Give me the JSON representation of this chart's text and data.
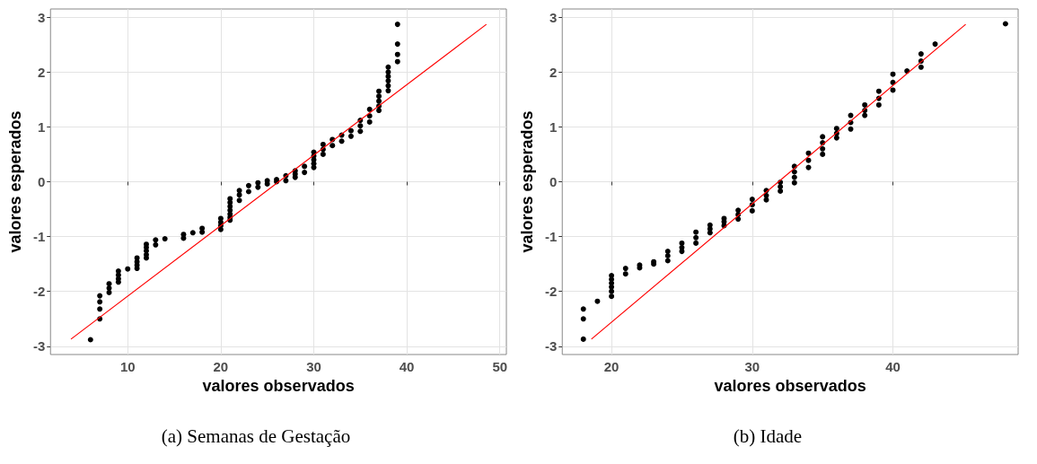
{
  "chart_data": [
    {
      "type": "scatter",
      "xlabel": "valores observados",
      "ylabel": "valores esperados",
      "annotations": [
        "(a) Semanas de Gestação"
      ],
      "xlim": [
        1.7,
        50.7
      ],
      "ylim": [
        -3.15,
        3.15
      ],
      "xticks": [
        10,
        20,
        30,
        40,
        50
      ],
      "yticks": [
        -3,
        -2,
        -1,
        0,
        1,
        2,
        3
      ],
      "grid": true,
      "marker": "circle",
      "series": [
        {
          "color": "#000000",
          "x": [
            6,
            7,
            7,
            7,
            7,
            8,
            8,
            8,
            9,
            9,
            9,
            9,
            10,
            11,
            11,
            11,
            11,
            12,
            12,
            12,
            12,
            12,
            13,
            13,
            14,
            16,
            16,
            17,
            18,
            18,
            20,
            20,
            20,
            20,
            21,
            21,
            21,
            21,
            21,
            21,
            21,
            22,
            22,
            22,
            23,
            23,
            24,
            24,
            25,
            25,
            26,
            26,
            27,
            27,
            28,
            28,
            28,
            29,
            29,
            30,
            30,
            30,
            30,
            30,
            31,
            31,
            31,
            32,
            32,
            33,
            33,
            34,
            34,
            35,
            35,
            35,
            36,
            36,
            36,
            37,
            37,
            37,
            37,
            37,
            38,
            38,
            38,
            38,
            38,
            38,
            39,
            39,
            39,
            39
          ],
          "values": [
            -2.88,
            -2.08,
            -2.19,
            -2.32,
            -2.5,
            -1.86,
            -1.94,
            -2.02,
            -1.63,
            -1.7,
            -1.77,
            -1.83,
            -1.59,
            -1.39,
            -1.46,
            -1.52,
            -1.58,
            -1.14,
            -1.2,
            -1.26,
            -1.33,
            -1.39,
            -1.06,
            -1.15,
            -1.04,
            -0.96,
            -1.03,
            -0.93,
            -0.85,
            -0.92,
            -0.67,
            -0.74,
            -0.8,
            -0.87,
            -0.31,
            -0.38,
            -0.45,
            -0.52,
            -0.59,
            -0.65,
            -0.7,
            -0.16,
            -0.24,
            -0.34,
            -0.07,
            -0.18,
            -0.02,
            -0.1,
            0.02,
            -0.04,
            0.04,
            0,
            0.11,
            0.02,
            0.2,
            0.14,
            0.08,
            0.28,
            0.17,
            0.54,
            0.47,
            0.4,
            0.33,
            0.26,
            0.68,
            0.59,
            0.5,
            0.77,
            0.66,
            0.85,
            0.74,
            0.93,
            0.83,
            1.12,
            1.02,
            0.92,
            1.32,
            1.2,
            1.09,
            1.65,
            1.56,
            1.47,
            1.38,
            1.3,
            2.09,
            2,
            1.92,
            1.84,
            1.75,
            1.66,
            2.87,
            2.51,
            2.32,
            2.19
          ]
        },
        {
          "type": "line",
          "marker": "none",
          "color": "#ff0000",
          "x": [
            3.9,
            48.55
          ],
          "values": [
            -2.87,
            2.87
          ]
        }
      ]
    },
    {
      "type": "scatter",
      "xlabel": "valores observados",
      "ylabel": "valores esperados",
      "annotations": [
        "(b) Idade"
      ],
      "xlim": [
        16.5,
        48.9
      ],
      "ylim": [
        -3.15,
        3.15
      ],
      "xticks": [
        20,
        30,
        40
      ],
      "yticks": [
        -3,
        -2,
        -1,
        0,
        1,
        2,
        3
      ],
      "grid": true,
      "marker": "circle",
      "series": [
        {
          "color": "#000000",
          "x": [
            18,
            18,
            18,
            19,
            20,
            20,
            20,
            20,
            20,
            20,
            21,
            21,
            22,
            22,
            23,
            23,
            24,
            24,
            24,
            25,
            25,
            25,
            26,
            26,
            26,
            27,
            27,
            27,
            28,
            28,
            28,
            29,
            29,
            29,
            30,
            30,
            30,
            31,
            31,
            31,
            32,
            32,
            32,
            33,
            33,
            33,
            33,
            34,
            34,
            34,
            35,
            35,
            35,
            35,
            36,
            36,
            36,
            37,
            37,
            37,
            38,
            38,
            38,
            39,
            39,
            39,
            40,
            40,
            40,
            41,
            42,
            42,
            42,
            43,
            48
          ],
          "values": [
            -2.32,
            -2.5,
            -2.87,
            -2.18,
            -1.71,
            -1.78,
            -1.85,
            -1.92,
            -2,
            -2.09,
            -1.58,
            -1.68,
            -1.52,
            -1.57,
            -1.46,
            -1.5,
            -1.27,
            -1.35,
            -1.44,
            -1.12,
            -1.2,
            -1.27,
            -0.92,
            -1.02,
            -1.12,
            -0.79,
            -0.86,
            -0.93,
            -0.67,
            -0.73,
            -0.8,
            -0.52,
            -0.6,
            -0.68,
            -0.32,
            -0.42,
            -0.53,
            -0.16,
            -0.25,
            -0.33,
            -0.01,
            -0.09,
            -0.17,
            0.28,
            0.18,
            0.08,
            -0.02,
            0.52,
            0.39,
            0.26,
            0.82,
            0.71,
            0.6,
            0.5,
            0.97,
            0.88,
            0.8,
            1.21,
            1.08,
            0.96,
            1.4,
            1.3,
            1.21,
            1.65,
            1.52,
            1.4,
            1.96,
            1.81,
            1.67,
            2.02,
            2.33,
            2.2,
            2.09,
            2.51,
            2.88
          ]
        },
        {
          "type": "line",
          "marker": "none",
          "color": "#ff0000",
          "x": [
            18.57,
            45.17
          ],
          "values": [
            -2.87,
            2.87
          ]
        }
      ]
    }
  ]
}
